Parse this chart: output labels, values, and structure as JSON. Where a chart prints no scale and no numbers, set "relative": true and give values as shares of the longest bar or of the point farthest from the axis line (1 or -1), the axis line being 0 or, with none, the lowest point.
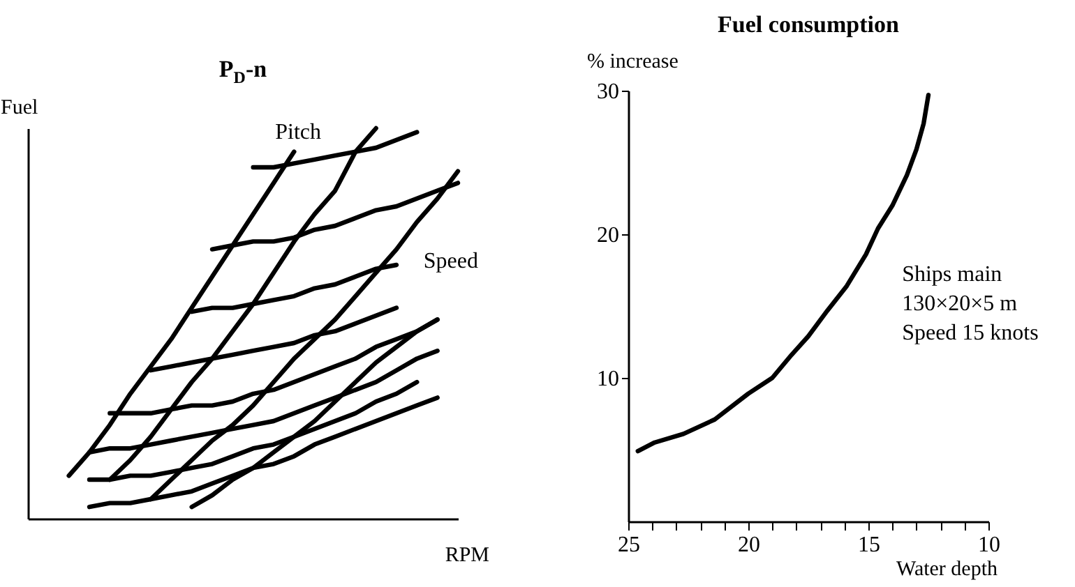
{
  "chart_data": [
    {
      "type": "line",
      "title": "P$_{D}$-n",
      "xlabel": "RPM",
      "ylabel": "Fuel",
      "relative": true,
      "annotations": [
        "Pitch",
        "Speed"
      ],
      "categories": [
        null,
        null,
        null,
        null,
        null,
        null,
        null,
        null,
        null,
        null,
        null,
        null,
        null,
        null,
        null,
        null,
        null,
        null,
        null,
        null,
        null,
        null
      ],
      "series": [
        {
          "color": "#000000",
          "values": [
            null,
            null,
            0.11,
            0.17,
            0.24,
            0.32,
            0.39,
            0.46,
            0.54,
            0.62,
            0.7,
            0.78,
            0.86,
            0.94,
            null,
            null,
            null,
            null,
            null,
            null,
            null,
            null
          ]
        },
        {
          "color": "#000000",
          "values": [
            null,
            null,
            null,
            null,
            0.1,
            0.15,
            0.21,
            0.28,
            0.35,
            0.41,
            0.48,
            0.55,
            0.63,
            0.71,
            0.78,
            0.84,
            0.94,
            1,
            null,
            null,
            null,
            null
          ]
        },
        {
          "color": "#000000",
          "values": [
            null,
            null,
            null,
            null,
            null,
            null,
            0.05,
            0.1,
            0.15,
            0.2,
            0.24,
            0.29,
            0.35,
            0.41,
            0.46,
            0.51,
            0.57,
            0.63,
            0.69,
            0.76,
            0.82,
            0.89
          ]
        },
        {
          "color": "#000000",
          "values": [
            null,
            null,
            null,
            null,
            null,
            null,
            null,
            null,
            0.03,
            0.06,
            0.1,
            0.13,
            0.17,
            0.21,
            0.25,
            0.3,
            0.35,
            0.4,
            0.44,
            0.48,
            0.51,
            null
          ]
        },
        {
          "color": "#000000",
          "values": [
            null,
            null,
            null,
            null,
            null,
            null,
            null,
            null,
            null,
            null,
            null,
            0.9,
            0.9,
            0.91,
            0.92,
            0.93,
            0.94,
            0.95,
            0.97,
            0.99,
            null,
            null
          ]
        },
        {
          "color": "#000000",
          "values": [
            null,
            null,
            null,
            null,
            null,
            null,
            null,
            null,
            null,
            0.69,
            0.7,
            0.71,
            0.71,
            0.72,
            0.74,
            0.75,
            0.77,
            0.79,
            0.8,
            0.82,
            0.84,
            0.86
          ]
        },
        {
          "color": "#000000",
          "values": [
            null,
            null,
            null,
            null,
            null,
            null,
            null,
            null,
            0.53,
            0.54,
            0.54,
            0.55,
            0.56,
            0.57,
            0.59,
            0.6,
            0.62,
            0.64,
            0.65,
            null,
            null,
            null
          ]
        },
        {
          "color": "#000000",
          "values": [
            null,
            null,
            null,
            null,
            null,
            null,
            0.38,
            0.39,
            0.4,
            0.41,
            0.42,
            0.43,
            0.44,
            0.45,
            0.47,
            0.48,
            0.5,
            0.52,
            0.54,
            null,
            null,
            null
          ]
        },
        {
          "color": "#000000",
          "values": [
            null,
            null,
            null,
            null,
            0.27,
            0.27,
            0.27,
            0.28,
            0.29,
            0.29,
            0.3,
            0.32,
            0.33,
            0.35,
            0.37,
            0.39,
            0.41,
            0.44,
            0.46,
            0.48,
            0.51,
            null
          ]
        },
        {
          "color": "#000000",
          "values": [
            null,
            null,
            null,
            0.17,
            0.18,
            0.18,
            0.19,
            0.2,
            0.21,
            0.22,
            0.23,
            0.24,
            0.25,
            0.27,
            0.29,
            0.31,
            0.33,
            0.35,
            0.38,
            0.41,
            0.43,
            null
          ]
        },
        {
          "color": "#000000",
          "values": [
            null,
            null,
            null,
            0.1,
            0.1,
            0.11,
            0.11,
            0.12,
            0.13,
            0.14,
            0.16,
            0.18,
            0.19,
            0.21,
            0.23,
            0.25,
            0.27,
            0.3,
            0.32,
            0.35,
            null,
            null
          ]
        },
        {
          "color": "#000000",
          "values": [
            null,
            null,
            null,
            0.03,
            0.04,
            0.04,
            0.05,
            0.06,
            0.07,
            0.09,
            0.11,
            0.13,
            0.14,
            0.16,
            0.19,
            0.21,
            0.23,
            0.25,
            0.27,
            0.29,
            0.31,
            null
          ]
        }
      ]
    },
    {
      "type": "line",
      "title": "Fuel consumption",
      "xlabel": "Water depth",
      "ylabel": "% increase",
      "annotations": [
        "Ships main\n130×20×5 m\nSpeed 15 knots"
      ],
      "xlim": [
        25,
        10
      ],
      "ylim": [
        0,
        30
      ],
      "xticks": [
        25,
        {
          "value": 24,
          "label": null
        },
        {
          "value": 23,
          "label": null
        },
        {
          "value": 22,
          "label": null
        },
        {
          "value": 21,
          "label": null
        },
        20,
        {
          "value": 19,
          "label": null
        },
        {
          "value": 18,
          "label": null
        },
        {
          "value": 17,
          "label": null
        },
        {
          "value": 16,
          "label": null
        },
        15,
        {
          "value": 14,
          "label": null
        },
        {
          "value": 13,
          "label": null
        },
        {
          "value": 12,
          "label": null
        },
        {
          "value": 11,
          "label": null
        },
        10
      ],
      "yticks": [
        10,
        20,
        30
      ],
      "series": [
        {
          "color": "#000000",
          "x": [
            24.6,
            23.9,
            22.7,
            21.4,
            20,
            19,
            18.2,
            17.5,
            16.7,
            15.9,
            15.1,
            14.6,
            14,
            13.4,
            13,
            12.7,
            12.5
          ],
          "values": [
            4.9,
            5.5,
            6.1,
            7.1,
            8.9,
            10,
            11.6,
            12.9,
            14.7,
            16.4,
            18.6,
            20.4,
            22,
            24.1,
            25.9,
            27.7,
            29.7
          ]
        }
      ]
    }
  ]
}
